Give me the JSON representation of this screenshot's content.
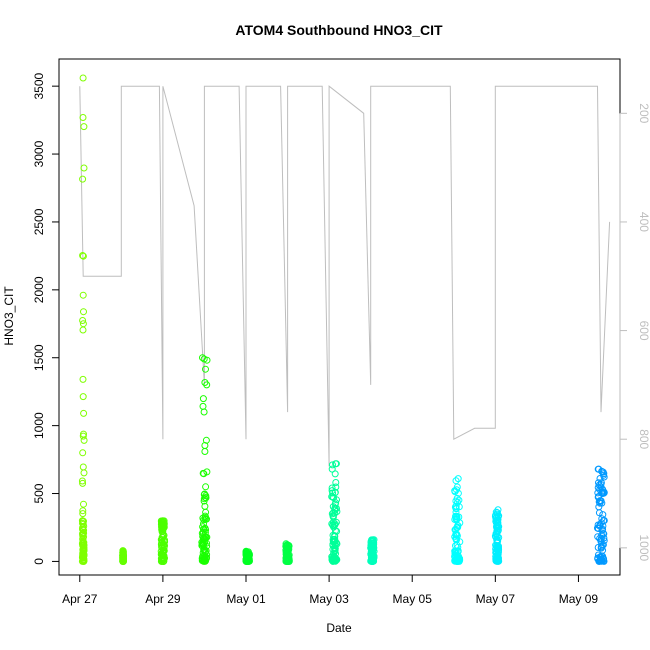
{
  "chart_data": {
    "type": "scatter",
    "title": "ATOM4 Southbound HNO3_CIT",
    "xlabel": "Date",
    "ylabel": "HNO3_CIT",
    "x_ticks": [
      "Apr 27",
      "Apr 29",
      "May 01",
      "May 03",
      "May 05",
      "May 07",
      "May 09"
    ],
    "y_ticks": [
      "0",
      "500",
      "1000",
      "1500",
      "2000",
      "2500",
      "3000",
      "3500"
    ],
    "y2_ticks": [
      "200",
      "400",
      "600",
      "800",
      "1000"
    ],
    "xlim": [
      "2018-04-26T12:00",
      "2018-05-10T00:00"
    ],
    "ylim": [
      -100,
      3700
    ],
    "y2lim": [
      1050,
      100
    ],
    "y2_reversed": true,
    "grid": false,
    "series": [
      {
        "color": "#7fff00",
        "clusters": [
          {
            "date": "2018-04-27T02:00",
            "spread_hours": 1.0,
            "bulk_max": 300,
            "peak": 3560
          }
        ]
      },
      {
        "color": "#66ff00",
        "clusters": [
          {
            "date": "2018-04-28T01:00",
            "spread_hours": 0.5,
            "bulk_max": 40,
            "peak": 80
          }
        ]
      },
      {
        "color": "#4cff00",
        "clusters": [
          {
            "date": "2018-04-29T00:00",
            "spread_hours": 2.0,
            "bulk_max": 250,
            "peak": 300
          }
        ]
      },
      {
        "color": "#1aff00",
        "clusters": [
          {
            "date": "2018-04-30T00:00",
            "spread_hours": 3.0,
            "bulk_max": 320,
            "peak": 1500
          }
        ]
      },
      {
        "color": "#00ff22",
        "clusters": [
          {
            "date": "2018-05-01T01:00",
            "spread_hours": 2.0,
            "bulk_max": 50,
            "peak": 75
          }
        ]
      },
      {
        "color": "#00ff44",
        "clusters": [
          {
            "date": "2018-05-02T00:00",
            "spread_hours": 2.0,
            "bulk_max": 80,
            "peak": 130
          }
        ]
      },
      {
        "color": "#00ff99",
        "clusters": [
          {
            "date": "2018-05-03T03:00",
            "spread_hours": 3.0,
            "bulk_max": 350,
            "peak": 720
          }
        ]
      },
      {
        "color": "#00ffbb",
        "clusters": [
          {
            "date": "2018-05-04T01:00",
            "spread_hours": 2.0,
            "bulk_max": 100,
            "peak": 160
          }
        ]
      },
      {
        "color": "#00ffff",
        "clusters": [
          {
            "date": "2018-05-06T02:00",
            "spread_hours": 3.0,
            "bulk_max": 300,
            "peak": 610
          }
        ]
      },
      {
        "color": "#00eeff",
        "clusters": [
          {
            "date": "2018-05-07T01:00",
            "spread_hours": 2.0,
            "bulk_max": 250,
            "peak": 380
          }
        ]
      },
      {
        "color": "#0099ff",
        "clusters": [
          {
            "date": "2018-05-09T13:00",
            "spread_hours": 4.0,
            "bulk_max": 500,
            "peak": 680
          }
        ]
      }
    ],
    "altitude_color": "#bebebe",
    "altitude_trace": [
      [
        "2018-04-27T00:00",
        150
      ],
      [
        "2018-04-27T02:00",
        500
      ],
      [
        "2018-04-28T00:00",
        500
      ],
      [
        "2018-04-28T00:00",
        150
      ],
      [
        "2018-04-28T22:00",
        150
      ],
      [
        "2018-04-29T00:00",
        800
      ],
      [
        "2018-04-29T00:00",
        150
      ],
      [
        "2018-04-29T18:00",
        370
      ],
      [
        "2018-04-30T00:00",
        700
      ],
      [
        "2018-04-30T00:00",
        150
      ],
      [
        "2018-04-30T20:00",
        150
      ],
      [
        "2018-05-01T00:00",
        800
      ],
      [
        "2018-05-01T00:00",
        150
      ],
      [
        "2018-05-01T20:00",
        150
      ],
      [
        "2018-05-02T00:00",
        750
      ],
      [
        "2018-05-02T00:00",
        150
      ],
      [
        "2018-05-02T20:00",
        150
      ],
      [
        "2018-05-03T00:00",
        850
      ],
      [
        "2018-05-03T00:00",
        150
      ],
      [
        "2018-05-03T20:00",
        200
      ],
      [
        "2018-05-04T00:00",
        700
      ],
      [
        "2018-05-04T00:00",
        150
      ],
      [
        "2018-05-05T22:00",
        150
      ],
      [
        "2018-05-06T00:00",
        800
      ],
      [
        "2018-05-06T12:00",
        780
      ],
      [
        "2018-05-07T00:00",
        780
      ],
      [
        "2018-05-07T00:00",
        150
      ],
      [
        "2018-05-09T11:00",
        150
      ],
      [
        "2018-05-09T13:00",
        750
      ],
      [
        "2018-05-09T18:00",
        400
      ]
    ]
  }
}
